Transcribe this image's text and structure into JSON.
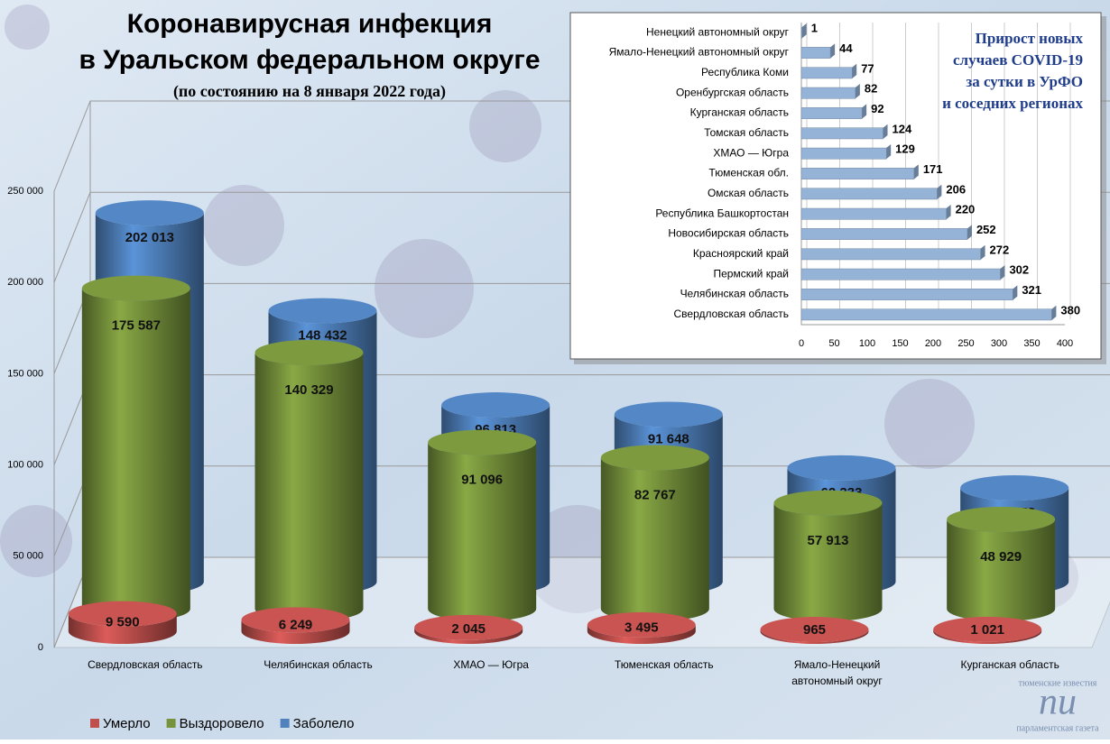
{
  "chart_data": [
    {
      "type": "cylinder",
      "title": [
        "Коронавирусная инфекция",
        "в Уральском федеральном округе"
      ],
      "subtitle": "(по состоянию на 8 января 2022 года)",
      "categories": [
        "Свердловская область",
        "Челябинская область",
        "ХМАО — Югра",
        "Тюменская область",
        "Ямало-Ненецкий автономный округ",
        "Курганская область"
      ],
      "series": [
        {
          "name": "Умерло",
          "color": "#c0504d",
          "values": [
            9590,
            6249,
            2045,
            3495,
            965,
            1021
          ],
          "value_labels": [
            "9 590",
            "6 249",
            "2 045",
            "3 495",
            "965",
            "1 021"
          ]
        },
        {
          "name": "Выздоровело",
          "color": "#77933c",
          "values": [
            175587,
            140329,
            91096,
            82767,
            57913,
            48929
          ],
          "value_labels": [
            "175 587",
            "140 329",
            "91 096",
            "82 767",
            "57 913",
            "48 929"
          ]
        },
        {
          "name": "Заболело",
          "color": "#4f81bd",
          "values": [
            202013,
            148432,
            96813,
            91648,
            62333,
            51372
          ],
          "value_labels": [
            "202 013",
            "148 432",
            "96 813",
            "91 648",
            "62 333",
            "51 372"
          ]
        }
      ],
      "ylim": [
        0,
        250000
      ],
      "yticks": [
        0,
        {
          "value": 50000,
          "label": "50 000"
        },
        {
          "value": 100000,
          "label": "100 000"
        },
        {
          "value": 150000,
          "label": "150 000"
        },
        {
          "value": 200000,
          "label": "200 000"
        },
        {
          "value": 250000,
          "label": "250 000"
        }
      ],
      "grid": true,
      "legend": "bottom-left",
      "watermark": [
        "тюменские известия",
        "пи",
        "парламентская газета"
      ]
    },
    {
      "type": "hbar",
      "title": [
        "Прирост новых",
        "случаев COVID-19",
        "за сутки в УрФО",
        "и соседних регионах"
      ],
      "categories": [
        "Ненецкий автономный округ",
        "Ямало-Ненецкий автономный округ",
        "Республика Коми",
        "Оренбургская область",
        "Курганская область",
        "Томская область",
        "ХМАО — Югра",
        "Тюменская обл.",
        "Омская область",
        "Республика Башкортостан",
        "Новосибирская область",
        "Красноярский край",
        "Пермский край",
        "Челябинская область",
        "Свердловская область"
      ],
      "values": [
        1,
        44,
        77,
        82,
        92,
        124,
        129,
        171,
        206,
        220,
        252,
        272,
        302,
        321,
        380
      ],
      "color": "#95b3d7",
      "xlim": [
        0,
        400
      ],
      "xticks": [
        0,
        50,
        100,
        150,
        200,
        250,
        300,
        350,
        400
      ],
      "grid": true
    }
  ]
}
